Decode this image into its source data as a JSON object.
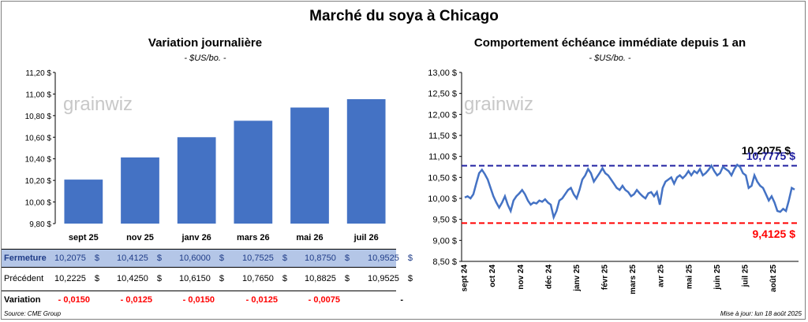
{
  "title": "Marché du soya à Chicago",
  "watermark": "grainwiz",
  "left_chart": {
    "subtitle": "Variation journalière",
    "unit": "- $US/bo. -"
  },
  "right_chart": {
    "subtitle": "Comportement échéance immédiate depuis 1 an",
    "unit": "- $US/bo. -",
    "label_last": "10,2075 $",
    "label_max": "10,7775 $",
    "label_min": "9,4125 $"
  },
  "table": {
    "rows": [
      {
        "label": "Fermeture",
        "values": [
          "10,2075",
          "10,4125",
          "10,6000",
          "10,7525",
          "10,8750",
          "10,9525"
        ],
        "currency": "$"
      },
      {
        "label": "Précédent",
        "values": [
          "10,2225",
          "10,4250",
          "10,6150",
          "10,7650",
          "10,8825",
          "10,9525"
        ],
        "currency": "$"
      },
      {
        "label": "Variation",
        "values": [
          "- 0,0150",
          "- 0,0125",
          "- 0,0150",
          "- 0,0125",
          "- 0,0075",
          "-"
        ],
        "currency": ""
      }
    ]
  },
  "footer": {
    "source": "Source: CME Group",
    "updated": "Mise à jour: lun 18 août 2025"
  },
  "colors": {
    "bar": "#4472c4",
    "line": "#4472c4",
    "max_line": "#1f1fa0",
    "min_line": "#ff0000",
    "row_highlight": "#b4c6e7",
    "negative": "#ff0000"
  },
  "chart_data": [
    {
      "type": "bar",
      "categories": [
        "sept 25",
        "nov 25",
        "janv 26",
        "mars 26",
        "mai 26",
        "juil 26"
      ],
      "values": [
        10.2075,
        10.4125,
        10.6,
        10.7525,
        10.875,
        10.9525
      ],
      "ylim": [
        9.8,
        11.2
      ],
      "yticks": [
        "9,80 $",
        "10,00 $",
        "10,20 $",
        "10,40 $",
        "10,60 $",
        "10,80 $",
        "11,00 $",
        "11,20 $"
      ],
      "grid": false
    },
    {
      "type": "line",
      "x_labels": [
        "sept 24",
        "oct 24",
        "nov 24",
        "déc 24",
        "janv 25",
        "févr 25",
        "mars 25",
        "avr 25",
        "mai 25",
        "juin 25",
        "juil 25",
        "août 25"
      ],
      "values": [
        10.02,
        10.05,
        10.0,
        10.1,
        10.35,
        10.6,
        10.68,
        10.58,
        10.45,
        10.25,
        10.05,
        9.9,
        9.78,
        9.9,
        10.05,
        9.85,
        9.7,
        9.95,
        10.05,
        10.12,
        10.2,
        10.1,
        9.95,
        9.85,
        9.9,
        9.88,
        9.95,
        9.92,
        9.98,
        9.9,
        9.85,
        9.55,
        9.7,
        9.95,
        10.0,
        10.1,
        10.2,
        10.25,
        10.1,
        10.0,
        10.2,
        10.45,
        10.55,
        10.7,
        10.6,
        10.4,
        10.5,
        10.6,
        10.72,
        10.6,
        10.55,
        10.45,
        10.35,
        10.25,
        10.2,
        10.3,
        10.2,
        10.15,
        10.05,
        10.1,
        10.2,
        10.12,
        10.05,
        10.0,
        10.12,
        10.15,
        10.05,
        10.15,
        9.85,
        10.25,
        10.4,
        10.45,
        10.5,
        10.35,
        10.5,
        10.55,
        10.48,
        10.55,
        10.65,
        10.55,
        10.65,
        10.6,
        10.7,
        10.55,
        10.6,
        10.68,
        10.78,
        10.65,
        10.55,
        10.6,
        10.75,
        10.7,
        10.65,
        10.55,
        10.7,
        10.8,
        10.75,
        10.6,
        10.55,
        10.25,
        10.3,
        10.55,
        10.4,
        10.3,
        10.25,
        10.1,
        9.95,
        10.05,
        9.9,
        9.7,
        9.68,
        9.75,
        9.7,
        9.95,
        10.25,
        10.21
      ],
      "ylim": [
        8.5,
        13.0
      ],
      "yticks": [
        "8,50 $",
        "9,00 $",
        "9,50 $",
        "10,00 $",
        "10,50 $",
        "11,00 $",
        "11,50 $",
        "12,00 $",
        "12,50 $",
        "13,00 $"
      ],
      "last": 10.2075,
      "max": 10.7775,
      "min": 9.4125,
      "grid": false
    }
  ]
}
